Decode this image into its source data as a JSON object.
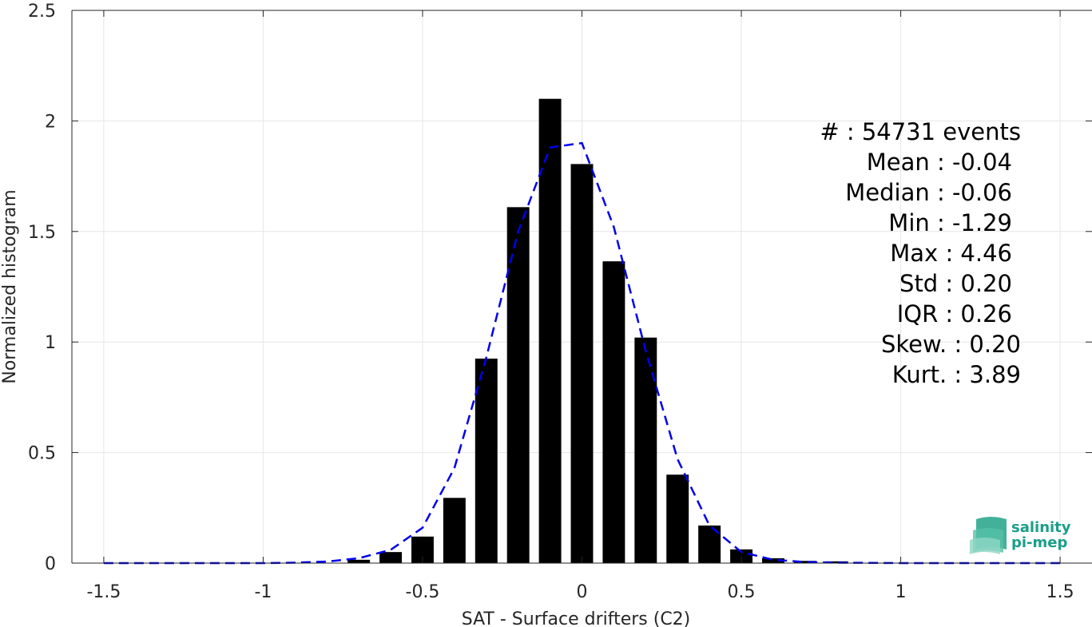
{
  "chart_data": {
    "type": "bar",
    "xlabel": "SAT - Surface drifters (C2)",
    "ylabel": "Normalized histogram",
    "xlim": [
      -1.6,
      1.6
    ],
    "ylim": [
      0,
      2.5
    ],
    "xticks": [
      "-1.5",
      "-1",
      "-0.5",
      "0",
      "0.5",
      "1",
      "1.5"
    ],
    "xtick_values": [
      -1.5,
      -1,
      -0.5,
      0,
      0.5,
      1,
      1.5
    ],
    "yticks": [
      "0",
      "0.5",
      "1",
      "1.5",
      "2",
      "2.5"
    ],
    "ytick_values": [
      0,
      0.5,
      1,
      1.5,
      2,
      2.5
    ],
    "grid": true,
    "bar_color": "#000000",
    "bar_width": 0.07,
    "bars": {
      "x": [
        -0.7,
        -0.6,
        -0.5,
        -0.4,
        -0.3,
        -0.2,
        -0.1,
        0.0,
        0.1,
        0.2,
        0.3,
        0.4,
        0.5,
        0.6,
        0.7,
        0.8
      ],
      "values": [
        0.015,
        0.05,
        0.12,
        0.295,
        0.925,
        1.61,
        2.1,
        1.805,
        1.365,
        1.02,
        0.4,
        0.17,
        0.062,
        0.022,
        0.01,
        0.008
      ]
    },
    "fit_curve": {
      "color": "#0000ee",
      "style": "dashed",
      "x": [
        -1.5,
        -1.4,
        -1.3,
        -1.2,
        -1.1,
        -1.0,
        -0.9,
        -0.8,
        -0.7,
        -0.6,
        -0.5,
        -0.4,
        -0.3,
        -0.2,
        -0.1,
        -0.05,
        0.0,
        0.1,
        0.2,
        0.3,
        0.4,
        0.5,
        0.6,
        0.7,
        0.8,
        0.9,
        1.0,
        1.1,
        1.2,
        1.3,
        1.4,
        1.5
      ],
      "y": [
        0,
        0,
        0,
        0,
        0,
        0,
        0.002,
        0.007,
        0.022,
        0.06,
        0.16,
        0.43,
        0.93,
        1.5,
        1.88,
        1.89,
        1.9,
        1.52,
        0.96,
        0.47,
        0.17,
        0.05,
        0.015,
        0.005,
        0.002,
        0.001,
        0,
        0,
        0,
        0,
        0,
        0
      ]
    },
    "stats": [
      "#  : 54731 events",
      "Mean : -0.04",
      "Median : -0.06",
      "Min : -1.29",
      "Max : 4.46",
      "Std : 0.20",
      "IQR : 0.26",
      "Skew. : 0.20",
      "Kurt. : 3.89"
    ],
    "logo": {
      "line1": "salinity",
      "line2": "pi-mep",
      "color": "#1a9e8a",
      "icon": "salinity-wave-icon"
    }
  }
}
